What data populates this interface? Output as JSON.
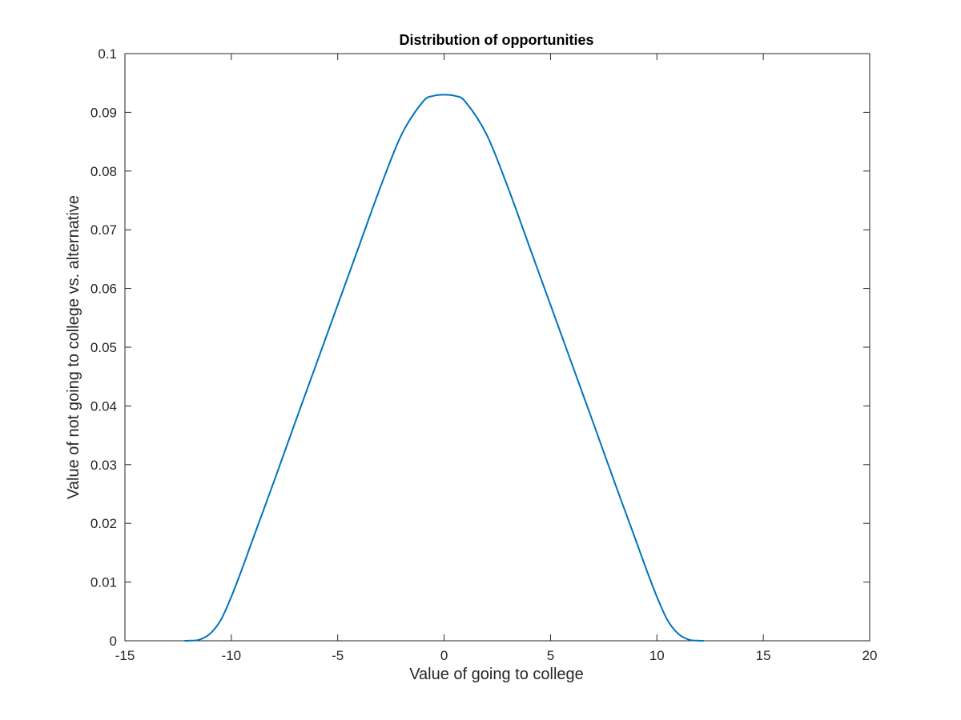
{
  "chart_data": {
    "type": "line",
    "title": "Distribution of opportunities",
    "xlabel": "Value of going to college",
    "ylabel": "Value of not going to college vs. alternative",
    "xlim": [
      -15,
      20
    ],
    "ylim": [
      0,
      0.1
    ],
    "x_ticks": [
      -15,
      -10,
      -5,
      0,
      5,
      10,
      15,
      20
    ],
    "x_tick_labels": [
      "-15",
      "-10",
      "-5",
      "0",
      "5",
      "10",
      "15",
      "20"
    ],
    "y_ticks": [
      0,
      0.01,
      0.02,
      0.03,
      0.04,
      0.05,
      0.06,
      0.07,
      0.08,
      0.09,
      0.1
    ],
    "y_tick_labels": [
      "0",
      "0.01",
      "0.02",
      "0.03",
      "0.04",
      "0.05",
      "0.06",
      "0.07",
      "0.08",
      "0.09",
      "0.1"
    ],
    "grid": false,
    "line_color": "#0072BD",
    "series": [
      {
        "x": [
          -12.2,
          -12,
          -11.5,
          -11,
          -10.5,
          -10,
          -9.5,
          -9,
          -8,
          -7,
          -6,
          -5,
          -4,
          -3,
          -2,
          -1,
          -0.5,
          0,
          0.5,
          1,
          2,
          3,
          4,
          5,
          6,
          7,
          8,
          9,
          9.5,
          10,
          10.5,
          11,
          11.5,
          12,
          12.2
        ],
        "y": [
          0,
          1e-05,
          0.0002,
          0.0012,
          0.0035,
          0.0075,
          0.0122,
          0.0172,
          0.0271,
          0.0372,
          0.0472,
          0.0572,
          0.0672,
          0.0772,
          0.0862,
          0.0918,
          0.0928,
          0.093,
          0.0928,
          0.0918,
          0.0862,
          0.0772,
          0.0672,
          0.0572,
          0.0472,
          0.0372,
          0.0271,
          0.0172,
          0.0122,
          0.0075,
          0.0035,
          0.0012,
          0.0002,
          1e-05,
          0
        ]
      }
    ]
  }
}
